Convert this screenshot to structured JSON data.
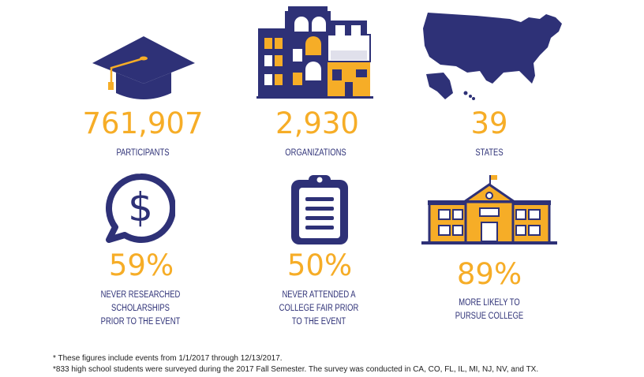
{
  "stats": [
    {
      "value": "761,907",
      "label": "PARTICIPANTS",
      "icon": "graduation-cap-icon"
    },
    {
      "value": "2,930",
      "label": "ORGANIZATIONS",
      "icon": "buildings-icon"
    },
    {
      "value": "39",
      "label": "STATES",
      "icon": "us-map-icon"
    },
    {
      "value": "59%",
      "label_lines": [
        "NEVER RESEARCHED",
        "SCHOLARSHIPS",
        "PRIOR TO THE EVENT"
      ],
      "icon": "dollar-speech-bubble-icon"
    },
    {
      "value": "50%",
      "label_lines": [
        "NEVER ATTENDED A",
        "COLLEGE FAIR PRIOR",
        "TO THE EVENT"
      ],
      "icon": "clipboard-icon"
    },
    {
      "value": "89%",
      "label_lines": [
        "MORE LIKELY TO",
        "PURSUE COLLEGE"
      ],
      "icon": "school-building-icon"
    }
  ],
  "footnotes": [
    "* These figures include events from 1/1/2017 through 12/13/2017.",
    "*833 high school students were surveyed during the 2017 Fall Semester. The survey was conducted in CA, CO, FL, IL, MI, NJ, NV, and TX."
  ],
  "colors": {
    "navy": "#2e3177",
    "gold": "#f6ad27"
  }
}
